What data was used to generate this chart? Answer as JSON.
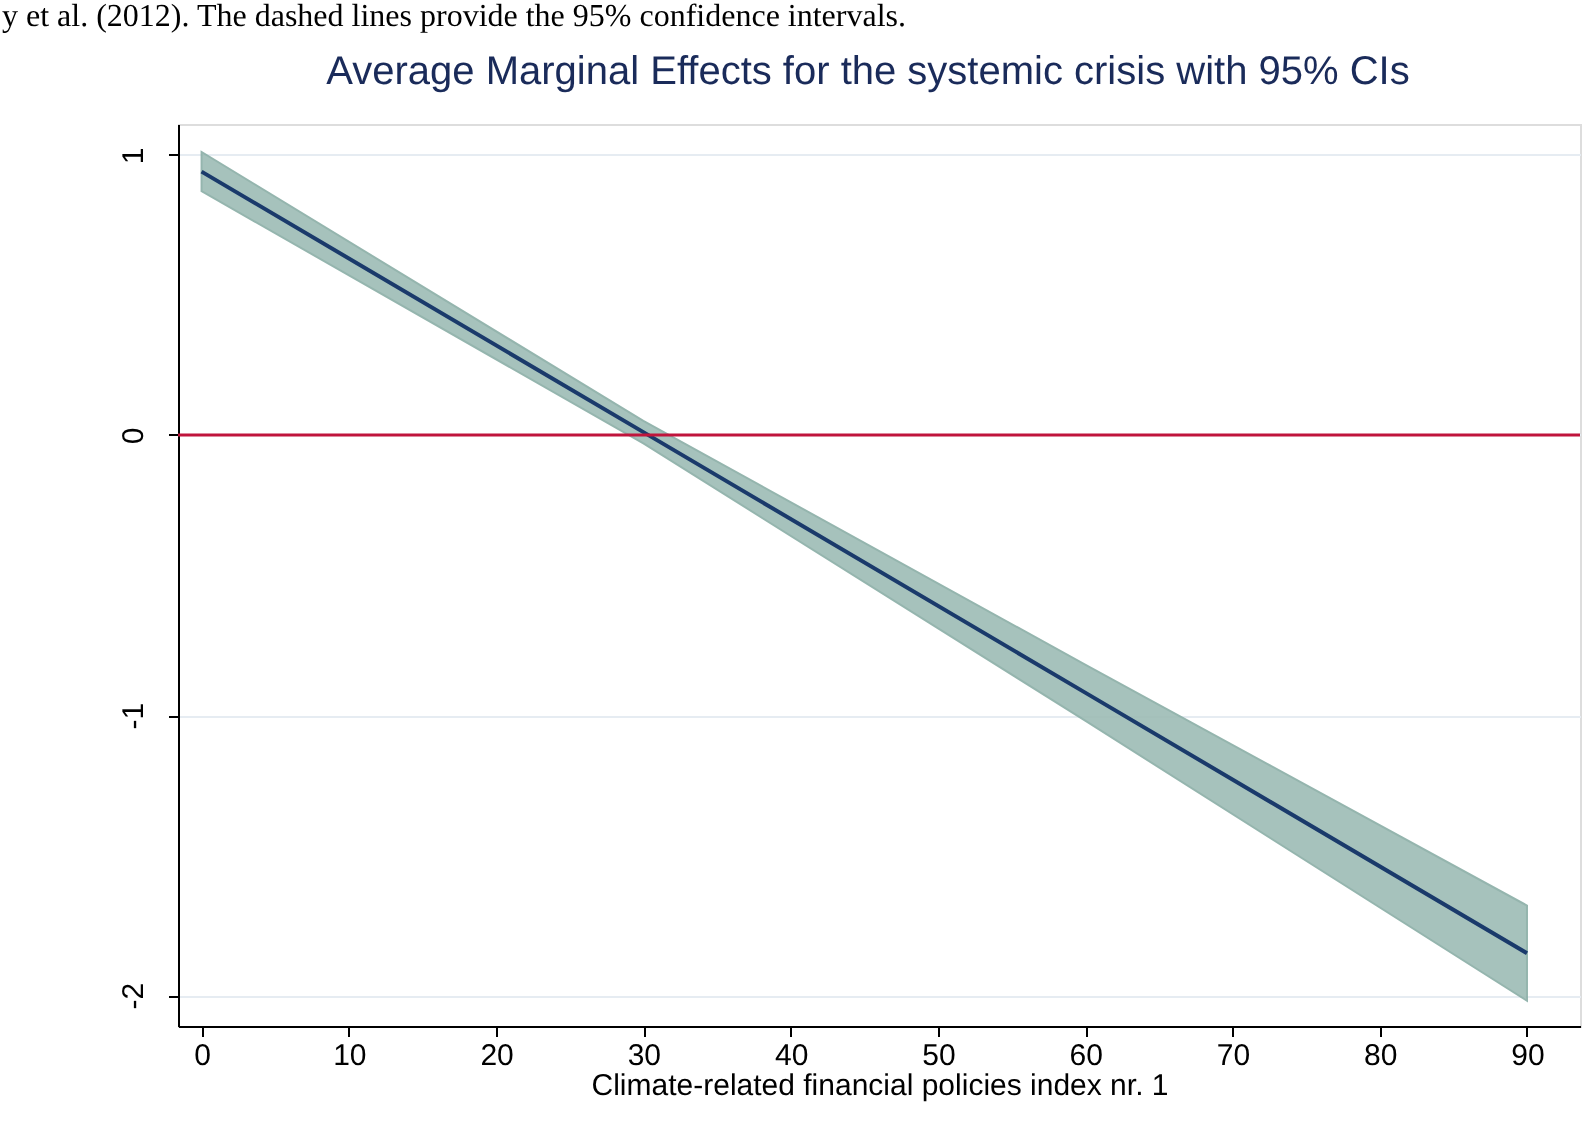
{
  "chart_data": {
    "type": "line",
    "title": "Average Marginal Effects for the systemic crisis with 95% CIs",
    "xlabel": "Climate-related financial policies index nr. 1",
    "annotations": [
      "y et al. (2012). The dashed lines provide the 95% confidence intervals."
    ],
    "series": [
      {
        "color": "#1a3a6b",
        "x": [
          0,
          30,
          60,
          90
        ],
        "values": [
          0.94,
          0.01,
          -0.92,
          -1.85
        ],
        "lower": [
          0.87,
          -0.03,
          -1.02,
          -2.02
        ],
        "upper": [
          1.01,
          0.05,
          -0.82,
          -1.68
        ]
      }
    ],
    "xlim": [
      -1.6,
      93.6
    ],
    "ylim": [
      -2.11,
      1.11
    ],
    "xticks": [
      0,
      10,
      20,
      30,
      40,
      50,
      60,
      70,
      80,
      90
    ],
    "yticks": [
      -2,
      -1,
      0,
      1
    ],
    "grid": "y",
    "marker": "none",
    "line_style": "solid",
    "ref_lines": [
      {
        "axis": "y",
        "value": 0,
        "color": "#c0143c"
      }
    ]
  }
}
